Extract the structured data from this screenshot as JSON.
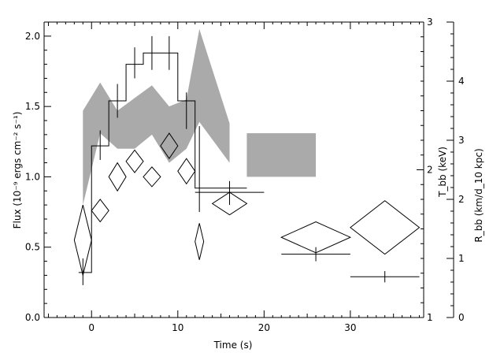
{
  "chart_data": {
    "type": "scatter",
    "title": "",
    "xlabel": "Time (s)",
    "ylabel_left": "Flux (10⁻⁹ ergs cm⁻² s⁻¹)",
    "ylabel_right_1": "T_bb (keV)",
    "ylabel_right_2": "R_bb (km/d_10 kpc)",
    "x_axis": {
      "range": [
        -5.5,
        38.5
      ],
      "ticks": [
        0,
        10,
        20,
        30
      ],
      "tick_labels": [
        "0",
        "10",
        "20",
        "30"
      ]
    },
    "y_left": {
      "range": [
        0.0,
        2.1
      ],
      "ticks": [
        0.0,
        0.5,
        1.0,
        1.5,
        2.0
      ],
      "tick_labels": [
        "0.0",
        "0.5",
        "1.0",
        "1.5",
        "2.0"
      ]
    },
    "y_T": {
      "range": [
        1,
        3
      ],
      "scale": "linear",
      "ticks": [
        1,
        2,
        3
      ],
      "tick_labels": [
        "1",
        "2",
        "3"
      ]
    },
    "y_R": {
      "range": [
        0,
        5
      ],
      "scale": "linear",
      "ticks": [
        0,
        1,
        2,
        3,
        4
      ],
      "tick_labels": [
        "0",
        "1",
        "2",
        "3",
        "4"
      ]
    },
    "grid": false,
    "legend": "none",
    "flux_steps": [
      {
        "x0": -1.5,
        "x1": 0.0,
        "y": 0.32
      },
      {
        "x0": 0.0,
        "x1": 2.0,
        "y": 1.22
      },
      {
        "x0": 2.0,
        "x1": 4.0,
        "y": 1.54
      },
      {
        "x0": 4.0,
        "x1": 6.0,
        "y": 1.8
      },
      {
        "x0": 6.0,
        "x1": 8.0,
        "y": 1.88
      },
      {
        "x0": 8.0,
        "x1": 10.0,
        "y": 1.88
      },
      {
        "x0": 10.0,
        "x1": 12.0,
        "y": 1.54
      },
      {
        "x0": 12.0,
        "x1": 18.0,
        "y": 0.92
      }
    ],
    "flux_errors": [
      {
        "x": -1.0,
        "y": 0.33,
        "lo": 0.23,
        "hi": 0.42
      },
      {
        "x": 1.0,
        "y": 1.22,
        "lo": 1.12,
        "hi": 1.33
      },
      {
        "x": 3.0,
        "y": 1.54,
        "lo": 1.42,
        "hi": 1.66
      },
      {
        "x": 5.0,
        "y": 1.8,
        "lo": 1.7,
        "hi": 1.92
      },
      {
        "x": 7.0,
        "y": 1.88,
        "lo": 1.76,
        "hi": 2.0
      },
      {
        "x": 9.0,
        "y": 1.88,
        "lo": 1.76,
        "hi": 2.0
      },
      {
        "x": 11.0,
        "y": 1.54,
        "lo": 1.34,
        "hi": 1.6
      },
      {
        "x": 12.5,
        "y": 0.92,
        "lo": 0.75,
        "hi": 1.36
      },
      {
        "x": 16.0,
        "y": 0.89,
        "lo": 0.8,
        "hi": 0.97
      },
      {
        "x": 26.0,
        "y": 0.45,
        "lo": 0.4,
        "hi": 0.5
      },
      {
        "x": 34.0,
        "y": 0.29,
        "lo": 0.25,
        "hi": 0.33
      }
    ],
    "flux_points_hbar": [
      {
        "x0": 12.0,
        "x1": 20.0,
        "y": 0.89
      },
      {
        "x0": 22.0,
        "x1": 30.0,
        "y": 0.45
      },
      {
        "x0": 30.0,
        "x1": 38.0,
        "y": 0.29
      }
    ],
    "temperature_diamonds": [
      {
        "x": -1.0,
        "y": 0.55,
        "dx": 1.0,
        "dy": 0.25
      },
      {
        "x": 1.0,
        "y": 0.76,
        "dx": 1.0,
        "dy": 0.08
      },
      {
        "x": 3.0,
        "y": 1.0,
        "dx": 1.0,
        "dy": 0.1
      },
      {
        "x": 5.0,
        "y": 1.11,
        "dx": 1.0,
        "dy": 0.08
      },
      {
        "x": 7.0,
        "y": 1.0,
        "dx": 1.0,
        "dy": 0.07
      },
      {
        "x": 9.0,
        "y": 1.22,
        "dx": 1.0,
        "dy": 0.09
      },
      {
        "x": 11.0,
        "y": 1.04,
        "dx": 1.0,
        "dy": 0.09
      },
      {
        "x": 12.5,
        "y": 0.54,
        "dx": 0.5,
        "dy": 0.13
      },
      {
        "x": 16.0,
        "y": 0.81,
        "dx": 2.0,
        "dy": 0.08
      },
      {
        "x": 26.0,
        "y": 0.57,
        "dx": 4.0,
        "dy": 0.11
      },
      {
        "x": 34.0,
        "y": 0.64,
        "dx": 4.0,
        "dy": 0.19
      }
    ],
    "radius_band": {
      "color": "#aaaaaa",
      "x": [
        -1.0,
        1.0,
        3.0,
        5.0,
        7.0,
        9.0,
        11.0,
        12.5,
        16.0
      ],
      "upper": [
        1.47,
        1.67,
        1.47,
        1.56,
        1.65,
        1.5,
        1.55,
        2.05,
        1.38
      ],
      "lower": [
        0.8,
        1.31,
        1.2,
        1.2,
        1.3,
        1.1,
        1.2,
        1.39,
        1.1
      ]
    },
    "radius_box": {
      "color": "#aaaaaa",
      "x0": 18.0,
      "x1": 26.0,
      "y0": 1.0,
      "y1": 1.31
    }
  }
}
